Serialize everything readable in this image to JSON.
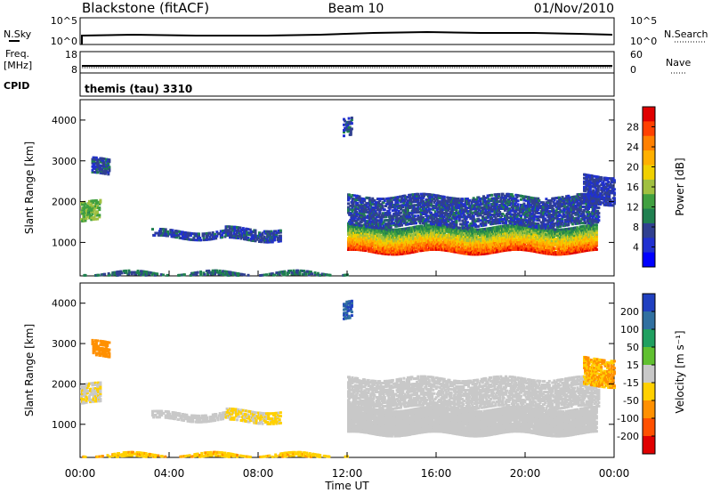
{
  "header": {
    "station": "Blackstone (fitACF)",
    "beam": "Beam 10",
    "date": "01/Nov/2010"
  },
  "strips": {
    "nsky_label": "N.Sky",
    "nsearch_label": "N.Search",
    "freq_label_1": "Freq.",
    "freq_label_2": "[MHz]",
    "cpid_label": "CPID",
    "nave_label": "Nave",
    "noise_ticks": [
      "10^5",
      "10^0"
    ],
    "freq_ticks": [
      "18",
      "8"
    ],
    "nave_ticks": [
      "60",
      "0"
    ],
    "cpid_text": "themis (tau) 3310"
  },
  "axes": {
    "ylabel": "Slant Range [km]",
    "xlabel": "Time UT",
    "yticks": [
      "4000",
      "3000",
      "2000",
      "1000"
    ],
    "xticks": [
      "00:00",
      "04:00",
      "08:00",
      "12:00",
      "16:00",
      "20:00",
      "00:00"
    ]
  },
  "colorbars": {
    "power": {
      "label": "Power [dB]",
      "ticks": [
        "28",
        "24",
        "20",
        "16",
        "12",
        "8",
        "4"
      ],
      "colors": [
        "#e00000",
        "#ff4000",
        "#ff8000",
        "#ffb000",
        "#f0d000",
        "#a0c040",
        "#40a040",
        "#208050",
        "#304090",
        "#2030d0",
        "#0000ff"
      ]
    },
    "velocity": {
      "label": "Velocity [m s⁻¹]",
      "ticks": [
        "200",
        "100",
        "50",
        "15",
        "-15",
        "-50",
        "-100",
        "-200"
      ],
      "colors": [
        "#2040c0",
        "#3070a0",
        "#20a060",
        "#60c030",
        "#c8c8c8",
        "#ffd000",
        "#ff9000",
        "#ff5000",
        "#e00000"
      ]
    }
  },
  "chart_data": {
    "type": "heatmap",
    "x_range_hours": [
      0,
      24
    ],
    "y_range_km": [
      180,
      4500
    ],
    "scatter_regions": [
      {
        "t_start": 0.0,
        "t_end": 0.9,
        "range_lo": 1550,
        "range_hi": 2050,
        "power_db": 14,
        "velocity": -10
      },
      {
        "t_start": 0.5,
        "t_end": 1.3,
        "range_lo": 2700,
        "range_hi": 3100,
        "power_db": 6,
        "velocity": -60
      },
      {
        "t_start": 3.2,
        "t_end": 6.5,
        "range_lo": 1150,
        "range_hi": 1350,
        "power_db": 6,
        "velocity": 0
      },
      {
        "t_start": 6.5,
        "t_end": 9.0,
        "range_lo": 1100,
        "range_hi": 1400,
        "power_db": 6,
        "velocity": -20
      },
      {
        "t_start": 0.0,
        "t_end": 12.0,
        "range_lo": 200,
        "range_hi": 320,
        "power_db": 8,
        "velocity": -30
      },
      {
        "t_start": 11.8,
        "t_end": 12.2,
        "range_lo": 3650,
        "range_hi": 4100,
        "power_db": 6,
        "velocity": 150
      },
      {
        "t_start": 12.0,
        "t_end": 23.2,
        "range_lo": 800,
        "range_hi": 1450,
        "power_db": 22,
        "velocity": 0
      },
      {
        "t_start": 12.0,
        "t_end": 23.3,
        "range_lo": 1450,
        "range_hi": 2200,
        "power_db": 6,
        "velocity": 0
      },
      {
        "t_start": 22.6,
        "t_end": 24.0,
        "range_lo": 2000,
        "range_hi": 2700,
        "power_db": 5,
        "velocity": -40
      }
    ]
  }
}
